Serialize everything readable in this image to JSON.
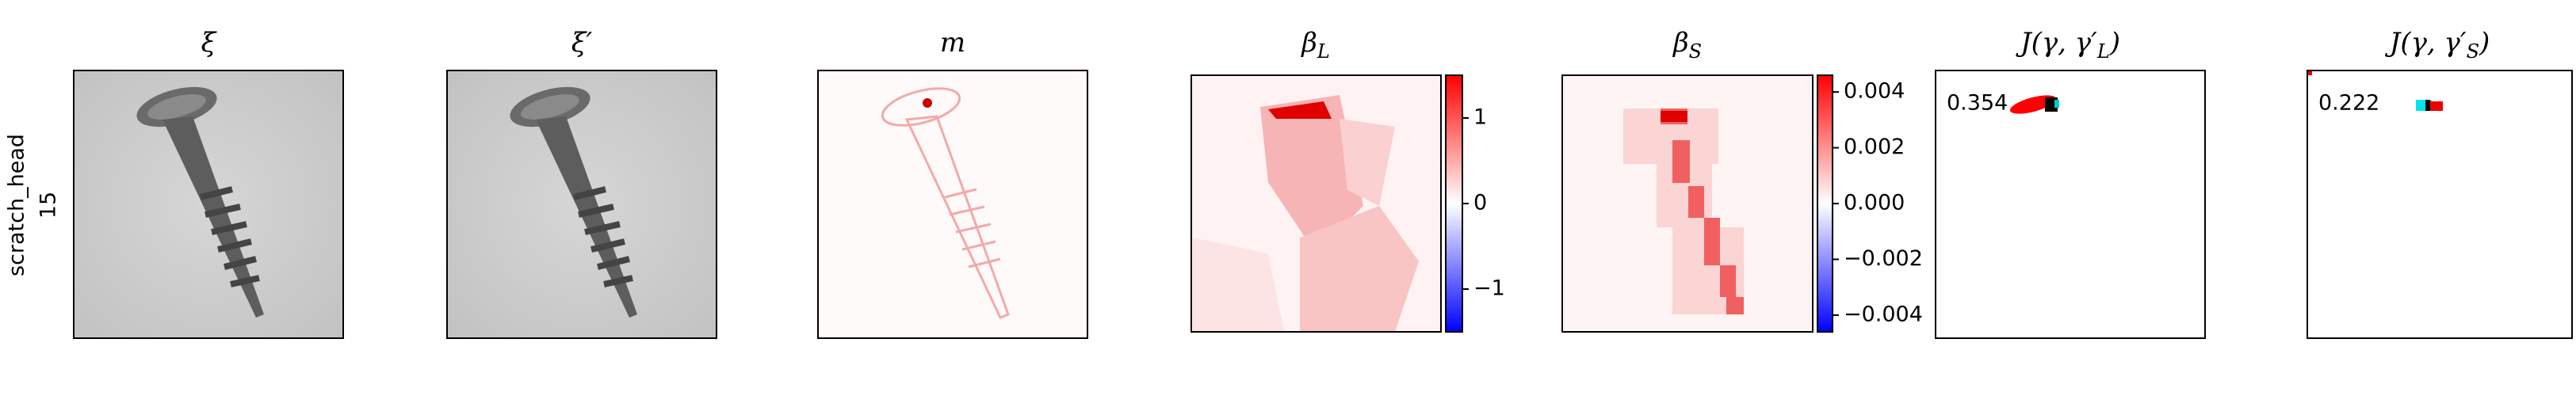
{
  "row_label": {
    "name": "scratch_head",
    "index": "15"
  },
  "panels": [
    {
      "title": {
        "base": "ξ"
      }
    },
    {
      "title": {
        "base": "ξ′"
      }
    },
    {
      "title": {
        "base": "m"
      }
    },
    {
      "title": {
        "base": "β",
        "sub": "L"
      }
    },
    {
      "title": {
        "base": "β",
        "sub": "S"
      }
    },
    {
      "title": {
        "base": "J(γ, γ′",
        "sub": "L",
        "tail": ")"
      },
      "annotation": 0.354
    },
    {
      "title": {
        "base": "J(γ, γ′",
        "sub": "S",
        "tail": ")"
      },
      "annotation": 0.222
    }
  ],
  "colorbars": [
    {
      "lim": [
        -1.5,
        1.5
      ],
      "ticks": [
        1,
        0,
        {
          "value": -1,
          "label": "−1"
        }
      ]
    },
    {
      "lim": [
        -0.0046,
        0.0046
      ],
      "ticks": [
        0.004,
        0.002,
        {
          "value": 0,
          "label": "0.000"
        },
        {
          "value": -0.002,
          "label": "−0.002"
        },
        {
          "value": -0.004,
          "label": "−0.004"
        }
      ]
    }
  ]
}
